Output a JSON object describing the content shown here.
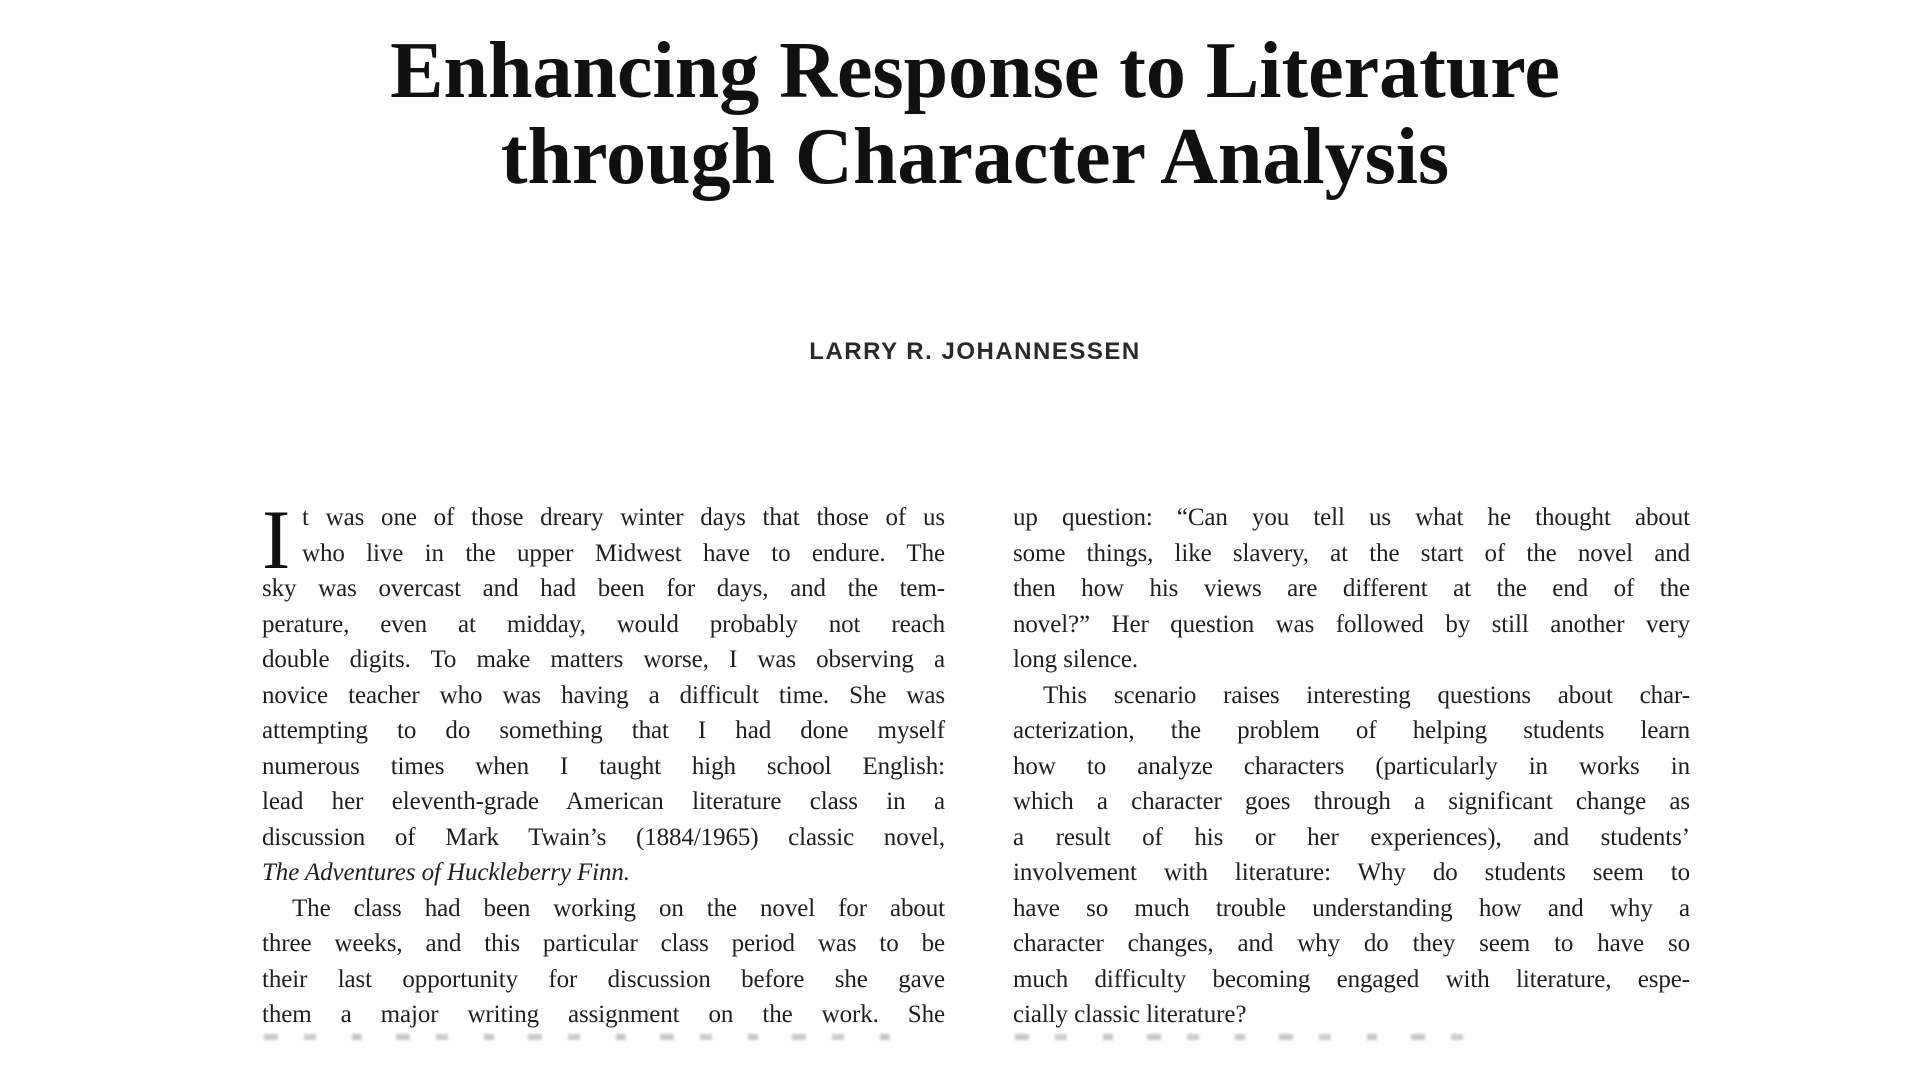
{
  "document": {
    "title_line1": "Enhancing Response to Literature",
    "title_line2": "through Character Analysis",
    "author": "LARRY R. JOHANNESSEN",
    "ink_color": "#1f1f1f",
    "background_color": "#ffffff"
  },
  "left_column": {
    "paragraphs": [
      {
        "drop_cap": "I",
        "indent": false,
        "justify_last": false,
        "lines": [
          "t was one of those dreary winter days that those of us",
          "who live in the upper Midwest have to endure. The",
          "sky was overcast and had been for days, and the tem-",
          "perature, even at midday, would probably not reach",
          "double digits. To make matters worse, I was observing a",
          "novice teacher who was having a difficult time. She was",
          "attempting to do something that I had done myself",
          "numerous times when I taught high school English:",
          "lead her eleventh-grade American literature class in a",
          "discussion of Mark Twain’s (1884/1965) classic novel,",
          "<i>The Adventures of Huckleberry Finn.</i>"
        ]
      },
      {
        "indent": true,
        "justify_last": true,
        "lines": [
          "The class had been working on the novel for about",
          "three weeks, and this particular class period was to be",
          "their last opportunity for discussion before she gave",
          "them a major writing assignment on the work. She"
        ]
      }
    ]
  },
  "right_column": {
    "paragraphs": [
      {
        "indent": false,
        "justify_last": false,
        "lines": [
          "up question: “Can you tell us what he thought about",
          "some things, like slavery, at the start of the novel and",
          "then how his views are different at the end of the",
          "novel?” Her question was followed by still another very",
          "long silence."
        ]
      },
      {
        "indent": true,
        "justify_last": false,
        "lines": [
          "This scenario raises interesting questions about char-",
          "acterization, the problem of helping students learn",
          "how to analyze characters (particularly in works in",
          "which a character goes through a significant change as",
          "a result of his or her experiences), and students’",
          "involvement with literature: Why do students seem to",
          "have so much trouble understanding how and why a",
          "character changes, and why do they seem to have so",
          "much difficulty becoming engaged with literature, espe-",
          "cially classic literature?"
        ]
      }
    ]
  }
}
